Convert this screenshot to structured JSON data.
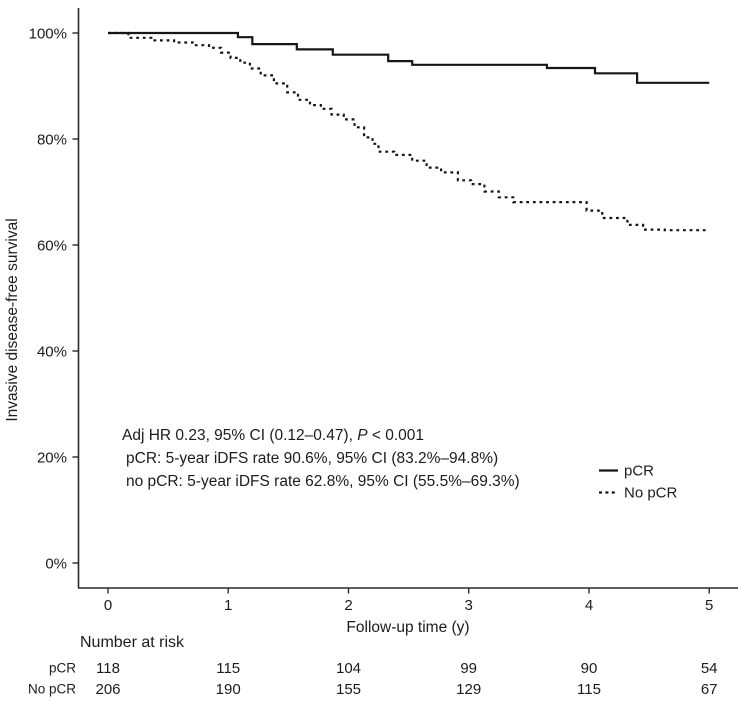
{
  "figure": {
    "y_axis": {
      "title": "Invasive disease-free survival",
      "ticks": [
        "100%",
        "80%",
        "60%",
        "40%",
        "20%",
        "0%"
      ]
    },
    "x_axis": {
      "title": "Follow-up time (y)",
      "ticks": [
        "0",
        "1",
        "2",
        "3",
        "4",
        "5"
      ]
    },
    "annotation": {
      "line1_prefix": "Adj HR 0.23, 95% CI (0.12–0.47), ",
      "line1_italic": "P",
      "line1_suffix": " < 0.001",
      "line2": "pCR: 5-year iDFS rate 90.6%, 95% CI (83.2%–94.8%)",
      "line3": "no pCR: 5-year iDFS rate 62.8%, 95% CI (55.5%–69.3%)"
    },
    "legend": {
      "items": [
        {
          "label": "pCR",
          "style": "solid"
        },
        {
          "label": "No pCR",
          "style": "dotted"
        }
      ]
    },
    "risk_table": {
      "heading": "Number at risk",
      "rows": [
        {
          "label": "pCR",
          "values": [
            "118",
            "115",
            "104",
            "99",
            "90",
            "54"
          ]
        },
        {
          "label": "No pCR",
          "values": [
            "206",
            "190",
            "155",
            "129",
            "115",
            "67"
          ]
        }
      ]
    },
    "colors": {
      "line": "#161616",
      "text": "#1c1c1c",
      "background": "#ffffff"
    }
  },
  "chart_data": {
    "type": "line",
    "subtype": "kaplan-meier-step",
    "title": "",
    "xlabel": "Follow-up time (y)",
    "ylabel": "Invasive disease-free survival",
    "xlim": [
      0,
      5
    ],
    "ylim": [
      0,
      100
    ],
    "grid": false,
    "legend_position": "right-middle",
    "series": [
      {
        "name": "pCR",
        "linestyle": "solid",
        "points": [
          [
            0,
            100
          ],
          [
            1.08,
            99.2
          ],
          [
            1.2,
            97.9
          ],
          [
            1.57,
            96.9
          ],
          [
            1.87,
            95.9
          ],
          [
            2.33,
            94.7
          ],
          [
            2.53,
            94.0
          ],
          [
            3.65,
            93.4
          ],
          [
            4.05,
            92.4
          ],
          [
            4.4,
            90.6
          ],
          [
            5,
            90.6
          ]
        ]
      },
      {
        "name": "No pCR",
        "linestyle": "dotted",
        "points": [
          [
            0,
            100
          ],
          [
            0.17,
            99.1
          ],
          [
            0.36,
            98.6
          ],
          [
            0.55,
            98.2
          ],
          [
            0.72,
            97.7
          ],
          [
            0.84,
            97.2
          ],
          [
            0.94,
            96.3
          ],
          [
            1.02,
            95.3
          ],
          [
            1.1,
            94.4
          ],
          [
            1.18,
            93.3
          ],
          [
            1.27,
            92.0
          ],
          [
            1.38,
            90.5
          ],
          [
            1.49,
            88.8
          ],
          [
            1.58,
            87.4
          ],
          [
            1.68,
            86.4
          ],
          [
            1.77,
            85.7
          ],
          [
            1.86,
            84.6
          ],
          [
            1.96,
            83.7
          ],
          [
            2.05,
            82.2
          ],
          [
            2.13,
            80.3
          ],
          [
            2.2,
            79.1
          ],
          [
            2.25,
            77.6
          ],
          [
            2.38,
            77.0
          ],
          [
            2.53,
            75.9
          ],
          [
            2.65,
            74.6
          ],
          [
            2.77,
            73.7
          ],
          [
            2.91,
            72.2
          ],
          [
            3.02,
            71.5
          ],
          [
            3.13,
            70.1
          ],
          [
            3.25,
            69.0
          ],
          [
            3.37,
            68.1
          ],
          [
            3.98,
            66.5
          ],
          [
            4.11,
            65.1
          ],
          [
            4.32,
            63.8
          ],
          [
            4.45,
            62.9
          ],
          [
            4.63,
            62.8
          ],
          [
            5,
            62.8
          ]
        ]
      }
    ],
    "stats": {
      "adj_hr": 0.23,
      "hr_ci_95": [
        0.12,
        0.47
      ],
      "p_value": "< 0.001",
      "pcr_5y_idfs_rate_pct": 90.6,
      "pcr_5y_ci_pct": [
        83.2,
        94.8
      ],
      "no_pcr_5y_idfs_rate_pct": 62.8,
      "no_pcr_5y_ci_pct": [
        55.5,
        69.3
      ]
    },
    "number_at_risk": {
      "times": [
        0,
        1,
        2,
        3,
        4,
        5
      ],
      "pCR": [
        118,
        115,
        104,
        99,
        90,
        54
      ],
      "No pCR": [
        206,
        190,
        155,
        129,
        115,
        67
      ]
    }
  }
}
